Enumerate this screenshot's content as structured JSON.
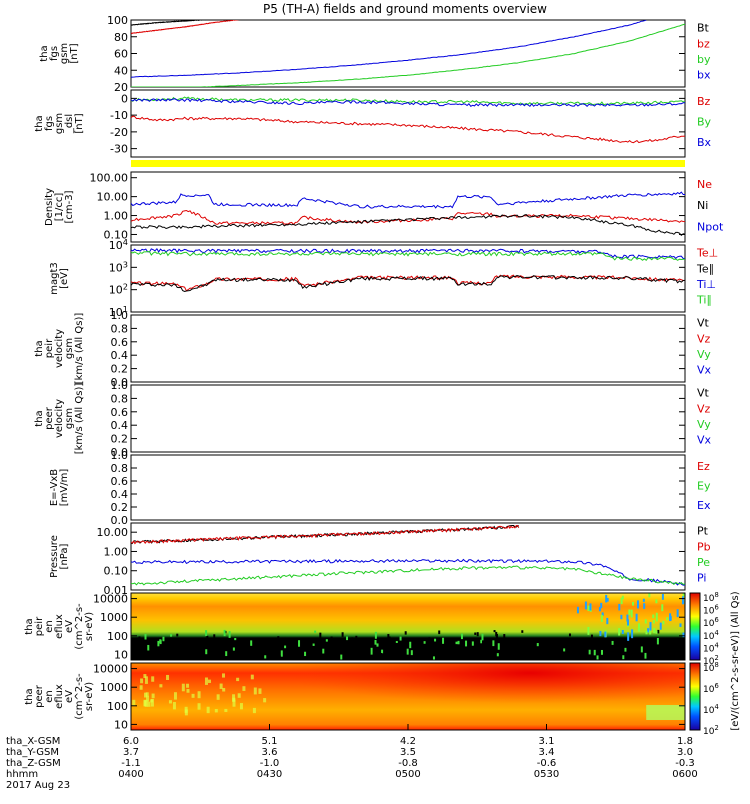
{
  "title": "P5 (TH-A) fields and ground moments overview",
  "colors": {
    "black": "#000000",
    "red": "#dd0000",
    "green": "#22cc22",
    "blue": "#0000dd",
    "yellow": "#ffff00"
  },
  "chart_data": [
    {
      "type": "line",
      "id": "p1",
      "ylabel": [
        "tha",
        "fgs",
        "gsm",
        "[nT]"
      ],
      "ylim": [
        20,
        100
      ],
      "yticks": [
        20,
        40,
        60,
        80,
        100
      ],
      "log": false,
      "legend": [
        {
          "name": "Bt",
          "color": "black"
        },
        {
          "name": "bz",
          "color": "red"
        },
        {
          "name": "by",
          "color": "green"
        },
        {
          "name": "bx",
          "color": "blue"
        }
      ],
      "series": [
        {
          "name": "Bt",
          "color": "black",
          "x": [
            0,
            0.05,
            0.1,
            0.15
          ],
          "y": [
            94,
            97,
            99,
            101
          ]
        },
        {
          "name": "bz",
          "color": "red",
          "x": [
            0,
            0.05,
            0.1,
            0.15,
            0.2
          ],
          "y": [
            84,
            88,
            92,
            97,
            101
          ]
        },
        {
          "name": "by",
          "color": "green",
          "x": [
            0,
            0.1,
            0.2,
            0.3,
            0.4,
            0.5,
            0.6,
            0.7,
            0.8,
            0.9,
            1.0
          ],
          "y": [
            18,
            19,
            22,
            25,
            29,
            34,
            41,
            49,
            60,
            75,
            95
          ]
        },
        {
          "name": "bx",
          "color": "blue",
          "x": [
            0,
            0.1,
            0.2,
            0.3,
            0.4,
            0.5,
            0.6,
            0.7,
            0.8,
            0.9,
            0.93
          ],
          "y": [
            32,
            34,
            37,
            41,
            46,
            52,
            59,
            68,
            80,
            94,
            100
          ]
        }
      ]
    },
    {
      "type": "line",
      "id": "p2",
      "ylabel": [
        "tha",
        "fgs",
        "gsm",
        "_dsl",
        "[nT]"
      ],
      "ylim": [
        -35,
        5
      ],
      "yticks": [
        -30,
        -20,
        -10,
        0
      ],
      "ytickLabels": [
        "-30",
        "-20",
        "-10",
        "0"
      ],
      "log": false,
      "legend": [
        {
          "name": "Bz",
          "color": "red"
        },
        {
          "name": "By",
          "color": "green"
        },
        {
          "name": "Bx",
          "color": "blue"
        }
      ],
      "series": [
        {
          "name": "Bz",
          "color": "red",
          "x": [
            0,
            0.05,
            0.1,
            0.2,
            0.3,
            0.4,
            0.5,
            0.6,
            0.7,
            0.8,
            0.9,
            0.95,
            1.0
          ],
          "y": [
            -11,
            -13,
            -12,
            -12,
            -14,
            -15,
            -16,
            -18,
            -20,
            -23,
            -26,
            -25,
            -22
          ]
        },
        {
          "name": "By",
          "color": "green",
          "x": [
            0,
            0.1,
            0.2,
            0.3,
            0.4,
            0.5,
            0.6,
            0.7,
            0.8,
            0.9,
            1.0
          ],
          "y": [
            -1,
            0,
            -1,
            -1,
            -1,
            -2,
            -2,
            -3,
            -3,
            -3,
            -2
          ]
        },
        {
          "name": "Bx",
          "color": "blue",
          "x": [
            0,
            0.1,
            0.2,
            0.3,
            0.4,
            0.5,
            0.6,
            0.7,
            0.8,
            0.9,
            1.0
          ],
          "y": [
            -1,
            -1,
            -2,
            -3,
            -2,
            -3,
            -4,
            -4,
            -4,
            -4,
            -3
          ]
        }
      ]
    },
    {
      "type": "line",
      "id": "p3",
      "ylabel": [
        "Density",
        "[1/cc]",
        "[cm-3]"
      ],
      "ylim": [
        0.04,
        200
      ],
      "yticks": [
        0.1,
        1,
        10,
        100
      ],
      "ytickLabels": [
        "0.10",
        "1.00",
        "10.00",
        "100.00"
      ],
      "log": true,
      "legend": [
        {
          "name": "Ne",
          "color": "red"
        },
        {
          "name": "Ni",
          "color": "black"
        },
        {
          "name": "Npot",
          "color": "blue"
        }
      ],
      "series": [
        {
          "name": "Npot",
          "color": "blue",
          "x": [
            0,
            0.08,
            0.09,
            0.14,
            0.15,
            0.3,
            0.31,
            0.4,
            0.41,
            0.58,
            0.59,
            0.65,
            0.66,
            0.9,
            1.0
          ],
          "y": [
            4,
            5,
            12,
            12,
            4,
            3.5,
            8,
            3.5,
            3,
            3,
            10,
            10,
            4,
            12,
            15
          ]
        },
        {
          "name": "Ne",
          "color": "red",
          "x": [
            0,
            0.08,
            0.1,
            0.14,
            0.15,
            0.3,
            0.31,
            0.4,
            0.41,
            0.58,
            0.59,
            0.65,
            0.66,
            0.8,
            0.9,
            1.0
          ],
          "y": [
            0.6,
            1.0,
            2.0,
            0.6,
            0.4,
            0.4,
            0.8,
            0.45,
            0.45,
            0.7,
            1.3,
            1.2,
            0.9,
            1.0,
            0.7,
            0.5
          ]
        },
        {
          "name": "Ni",
          "color": "black",
          "x": [
            0,
            0.1,
            0.2,
            0.3,
            0.4,
            0.5,
            0.6,
            0.7,
            0.8,
            0.85,
            0.9,
            0.95,
            1.0
          ],
          "y": [
            0.25,
            0.25,
            0.3,
            0.35,
            0.45,
            0.6,
            0.8,
            1.0,
            0.8,
            0.5,
            0.3,
            0.15,
            0.1
          ]
        }
      ]
    },
    {
      "type": "line",
      "id": "p4",
      "ylabel": [
        "magt3",
        "[eV]"
      ],
      "ylim": [
        10,
        10000
      ],
      "yticks": [
        10,
        100,
        1000,
        10000
      ],
      "ytickLabels": [
        "10^1",
        "10^2",
        "10^3",
        "10^4"
      ],
      "log": true,
      "legend": [
        {
          "name": "Te⊥",
          "color": "red"
        },
        {
          "name": "Te∥",
          "color": "black"
        },
        {
          "name": "Ti⊥",
          "color": "blue"
        },
        {
          "name": "Ti∥",
          "color": "green"
        }
      ],
      "series": [
        {
          "name": "Ti⊥",
          "color": "blue",
          "x": [
            0,
            0.1,
            0.3,
            0.5,
            0.7,
            0.85,
            0.87,
            1.0
          ],
          "y": [
            6000,
            5500,
            5500,
            5500,
            5500,
            5000,
            3000,
            3000
          ]
        },
        {
          "name": "Ti∥",
          "color": "green",
          "x": [
            0,
            0.1,
            0.3,
            0.5,
            0.7,
            0.85,
            0.87,
            1.0
          ],
          "y": [
            4500,
            4000,
            4000,
            4000,
            4000,
            4000,
            2500,
            2500
          ]
        },
        {
          "name": "Te⊥",
          "color": "red",
          "x": [
            0,
            0.08,
            0.1,
            0.14,
            0.15,
            0.3,
            0.31,
            0.4,
            0.41,
            0.58,
            0.59,
            0.65,
            0.66,
            0.9,
            1.0
          ],
          "y": [
            200,
            180,
            100,
            200,
            300,
            300,
            150,
            300,
            350,
            350,
            200,
            200,
            400,
            350,
            250
          ]
        },
        {
          "name": "Te∥",
          "color": "black",
          "x": [
            0,
            0.08,
            0.1,
            0.14,
            0.15,
            0.3,
            0.31,
            0.4,
            0.41,
            0.58,
            0.59,
            0.65,
            0.66,
            0.9,
            1.0
          ],
          "y": [
            180,
            160,
            90,
            180,
            280,
            280,
            130,
            280,
            320,
            320,
            180,
            180,
            380,
            330,
            230
          ]
        }
      ]
    },
    {
      "type": "line",
      "id": "p5",
      "ylabel": [
        "tha",
        "peir",
        "velocity",
        "gsm",
        "[km/s (All Qs)]"
      ],
      "ylim": [
        0,
        1
      ],
      "yticks": [
        0,
        0.2,
        0.4,
        0.6,
        0.8,
        1.0
      ],
      "ytickLabels": [
        "0.0",
        "0.2",
        "0.4",
        "0.6",
        "0.8",
        "1.0"
      ],
      "log": false,
      "legend": [
        {
          "name": "Vt",
          "color": "black"
        },
        {
          "name": "Vz",
          "color": "red"
        },
        {
          "name": "Vy",
          "color": "green"
        },
        {
          "name": "Vx",
          "color": "blue"
        }
      ],
      "series": []
    },
    {
      "type": "line",
      "id": "p6",
      "ylabel": [
        "tha",
        "peer",
        "velocity",
        "gsm",
        "[km/s (All Qs)]"
      ],
      "ylim": [
        0,
        1
      ],
      "yticks": [
        0,
        0.2,
        0.4,
        0.6,
        0.8,
        1.0
      ],
      "ytickLabels": [
        "0.0",
        "0.2",
        "0.4",
        "0.6",
        "0.8",
        "1.0"
      ],
      "log": false,
      "legend": [
        {
          "name": "Vt",
          "color": "black"
        },
        {
          "name": "Vz",
          "color": "red"
        },
        {
          "name": "Vy",
          "color": "green"
        },
        {
          "name": "Vx",
          "color": "blue"
        }
      ],
      "series": []
    },
    {
      "type": "line",
      "id": "p7",
      "ylabel": [
        "E=-VxB",
        "[mV/m]"
      ],
      "ylim": [
        0,
        1
      ],
      "yticks": [
        0,
        0.2,
        0.4,
        0.6,
        0.8,
        1.0
      ],
      "ytickLabels": [
        "0.0",
        "0.2",
        "0.4",
        "0.6",
        "0.8",
        "1.0"
      ],
      "log": false,
      "legend": [
        {
          "name": "Ez",
          "color": "red"
        },
        {
          "name": "Ey",
          "color": "green"
        },
        {
          "name": "Ex",
          "color": "blue"
        }
      ],
      "series": []
    },
    {
      "type": "line",
      "id": "p8",
      "ylabel": [
        "Pressure",
        "[nPa]"
      ],
      "ylim": [
        0.01,
        30
      ],
      "yticks": [
        0.01,
        0.1,
        1,
        10
      ],
      "ytickLabels": [
        "0.01",
        "0.10",
        "1.00",
        "10.00"
      ],
      "log": true,
      "legend": [
        {
          "name": "Pt",
          "color": "black"
        },
        {
          "name": "Pb",
          "color": "red"
        },
        {
          "name": "Pe",
          "color": "green"
        },
        {
          "name": "Pi",
          "color": "blue"
        }
      ],
      "series": [
        {
          "name": "Pt",
          "color": "black",
          "x": [
            0,
            0.2,
            0.4,
            0.6,
            0.7
          ],
          "y": [
            3,
            5,
            8,
            14,
            20
          ]
        },
        {
          "name": "Pb",
          "color": "red",
          "x": [
            0,
            0.2,
            0.4,
            0.6,
            0.7
          ],
          "y": [
            3,
            5,
            8,
            14,
            20
          ]
        },
        {
          "name": "Pi",
          "color": "blue",
          "x": [
            0,
            0.2,
            0.4,
            0.6,
            0.8,
            0.85,
            0.9,
            0.95,
            1.0
          ],
          "y": [
            0.28,
            0.3,
            0.32,
            0.33,
            0.3,
            0.2,
            0.04,
            0.03,
            0.02
          ]
        },
        {
          "name": "Pe",
          "color": "green",
          "x": [
            0,
            0.2,
            0.4,
            0.6,
            0.7,
            0.8,
            0.9,
            1.0
          ],
          "y": [
            0.02,
            0.04,
            0.08,
            0.14,
            0.15,
            0.12,
            0.04,
            0.02
          ]
        }
      ]
    },
    {
      "type": "heatmap",
      "id": "p9",
      "ylabel": [
        "tha",
        "peir",
        "en",
        "eflux",
        "eV",
        "(cm^2-s-",
        "sr-eV)"
      ],
      "ylim": [
        5,
        20000
      ],
      "yticks": [
        10,
        100,
        1000,
        10000
      ],
      "ytickLabels": [
        "10",
        "100",
        "1000",
        "10000"
      ],
      "log": true
    },
    {
      "type": "heatmap",
      "id": "p10",
      "ylabel": [
        "tha",
        "peer",
        "en",
        "eflux",
        "eV",
        "(cm^2-s-",
        "sr-eV)"
      ],
      "ylim": [
        5,
        20000
      ],
      "yticks": [
        10,
        100,
        1000,
        10000
      ],
      "ytickLabels": [
        "10",
        "100",
        "1000",
        "10000"
      ],
      "log": true
    }
  ],
  "colorbar": {
    "label": "[eV/(cm^2-s-sr-eV)] (All Qs)",
    "ticks1": [
      "10^8",
      "10^6",
      "10^6",
      "10^4",
      "10^4",
      "10^2"
    ],
    "ticks2": [
      "10^8",
      "10^6",
      "10^4",
      "10^2"
    ]
  },
  "xaxis": {
    "rows": [
      {
        "label": "tha_X-GSM",
        "values": [
          "6.0",
          "5.1",
          "4.2",
          "3.1",
          "1.8"
        ]
      },
      {
        "label": "tha_Y-GSM",
        "values": [
          "3.7",
          "3.6",
          "3.5",
          "3.4",
          "3.0"
        ]
      },
      {
        "label": "tha_Z-GSM",
        "values": [
          "-1.1",
          "-1.0",
          "-0.8",
          "-0.6",
          "-0.3"
        ]
      },
      {
        "label": "hhmm",
        "values": [
          "0400",
          "0430",
          "0500",
          "0530",
          "0600"
        ]
      }
    ],
    "date": "2017 Aug 23"
  }
}
